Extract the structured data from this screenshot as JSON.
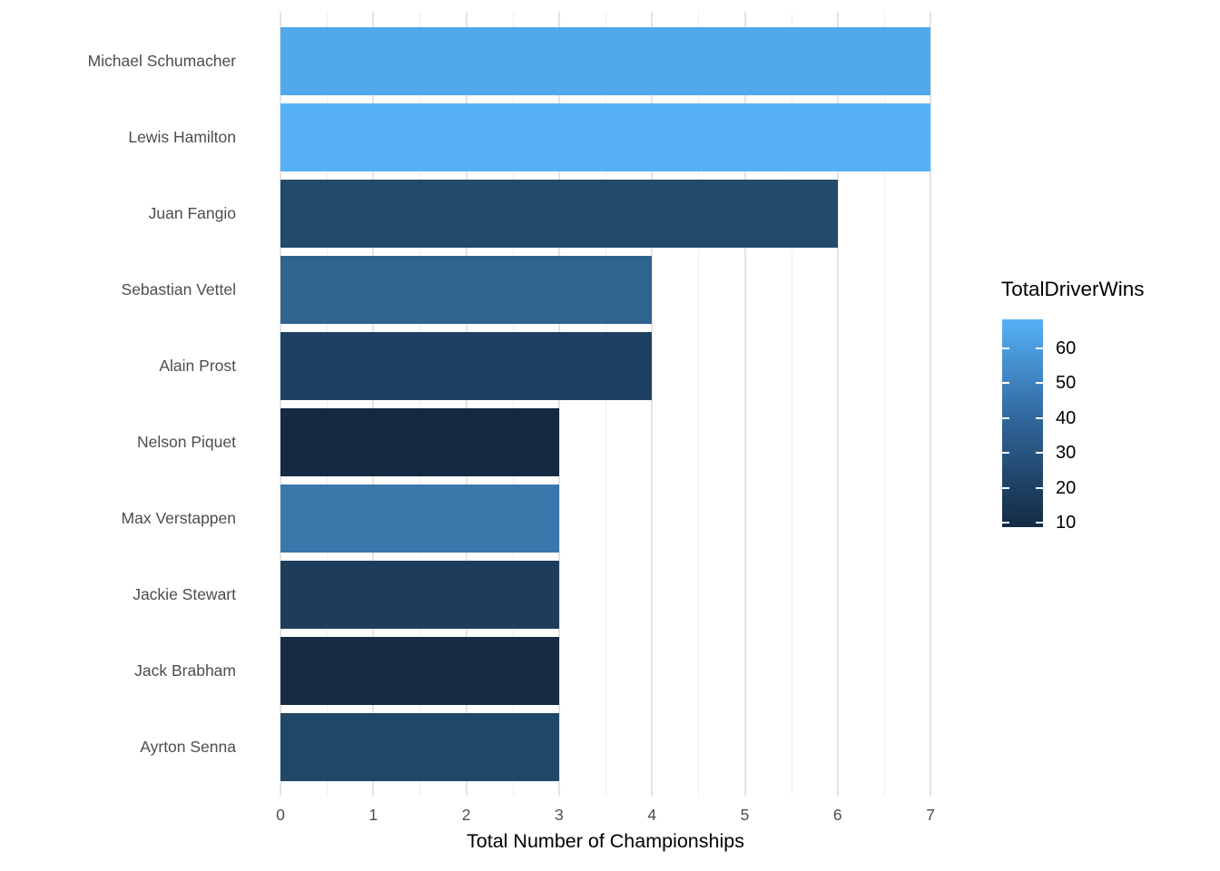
{
  "chart_data": {
    "type": "bar",
    "orientation": "horizontal",
    "title": "",
    "xlabel": "Total Number of Championships",
    "ylabel": "",
    "categories": [
      "Michael Schumacher",
      "Lewis Hamilton",
      "Juan Fangio",
      "Sebastian Vettel",
      "Alain Prost",
      "Nelson Piquet",
      "Max Verstappen",
      "Jackie Stewart",
      "Jack Brabham",
      "Ayrton Senna"
    ],
    "values": [
      7,
      7,
      6,
      4,
      4,
      3,
      3,
      3,
      3,
      3
    ],
    "bar_colors": [
      "#51a8eb",
      "#56b0f6",
      "#224a6b",
      "#2f6390",
      "#1e4062",
      "#152a42",
      "#3a78ac",
      "#1e3d5c",
      "#172c44",
      "#214767"
    ],
    "x_ticks": [
      0,
      1,
      2,
      3,
      4,
      5,
      6,
      7
    ],
    "xlim": [
      -0.35,
      7.35
    ],
    "grid": {
      "major": "on",
      "minor": "on",
      "background": "white"
    },
    "legend": {
      "title": "TotalDriverWins",
      "type": "colorbar",
      "position": "right",
      "ticks": [
        60,
        50,
        40,
        30,
        20,
        10
      ],
      "gradient_high_color": "#56b1f7",
      "gradient_low_color": "#132b43",
      "domain_est": [
        8.8,
        68.3
      ]
    }
  },
  "colors": {
    "background": "#ffffff",
    "gridline_major": "#e4e4e4",
    "gridline_minor": "#efefef",
    "axis_text": "#4d4d4d",
    "title_text": "#000000"
  }
}
